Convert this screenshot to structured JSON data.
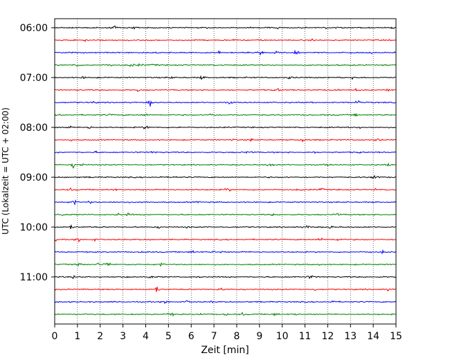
{
  "chart_data": {
    "type": "line",
    "subtype": "helicorder-seismogram",
    "xlabel": "Zeit  [min]",
    "ylabel": "UTC (Lokalzeit = UTC + 02:00)",
    "xlim": [
      0,
      15
    ],
    "x_ticks": [
      "0",
      "1",
      "2",
      "3",
      "4",
      "5",
      "6",
      "7",
      "8",
      "9",
      "10",
      "11",
      "12",
      "13",
      "14",
      "15"
    ],
    "y_ticks": [
      "06:00",
      "07:00",
      "08:00",
      "09:00",
      "10:00",
      "11:00"
    ],
    "trace_start": [
      "06:00",
      "06:15",
      "06:30",
      "06:45",
      "07:00",
      "07:15",
      "07:30",
      "07:45",
      "08:00",
      "08:15",
      "08:30",
      "08:45",
      "09:00",
      "09:15",
      "09:30",
      "09:45",
      "10:00",
      "10:15",
      "10:30",
      "10:45",
      "11:00",
      "11:15",
      "11:30",
      "11:45"
    ],
    "trace_colors": [
      "#000000",
      "#ff0000",
      "#0000ff",
      "#008000"
    ],
    "grid": "vertical dotted lines at each minute"
  }
}
